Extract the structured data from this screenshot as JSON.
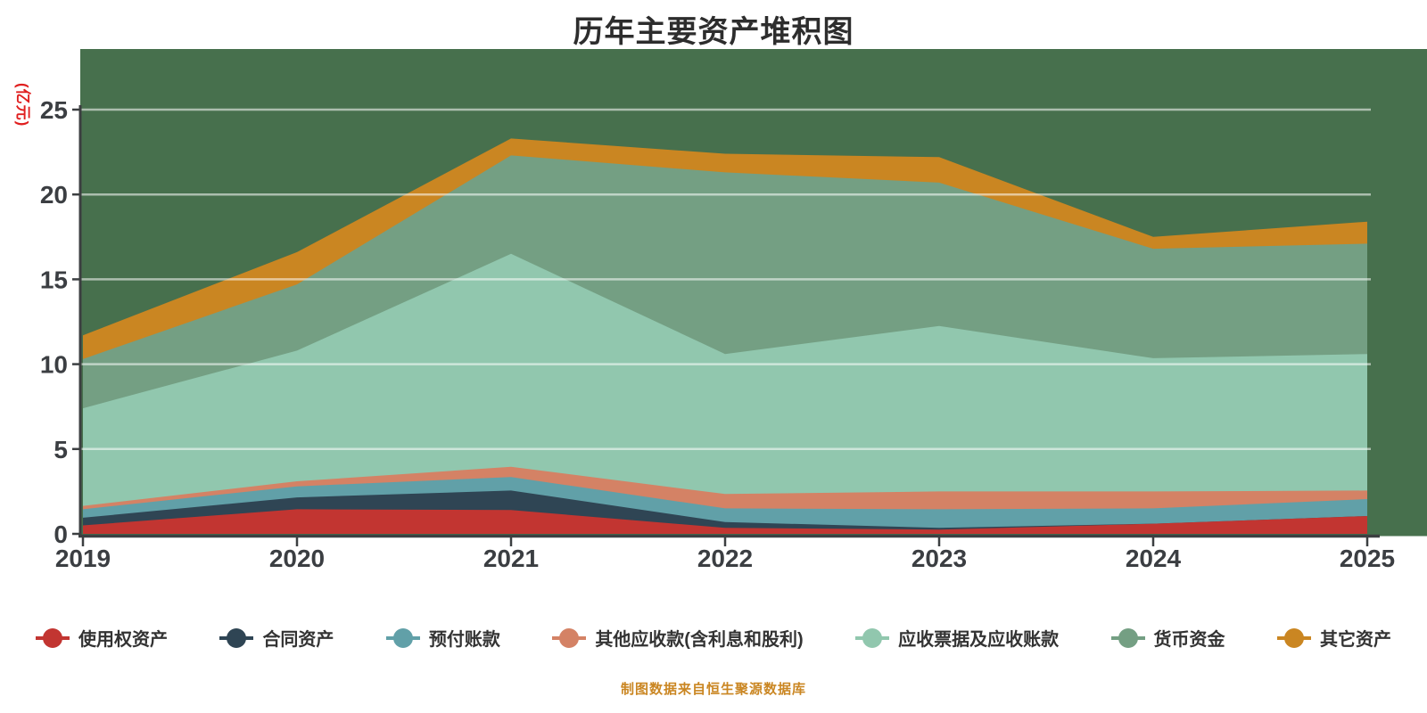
{
  "title": "历年主要资产堆积图",
  "y_axis_name": "(亿元)",
  "footer": "制图数据来自恒生聚源数据库",
  "colors": {
    "page_bg": "#ffffff",
    "plot_bg": "#47704d",
    "axis": "#3c3f41",
    "grid": "rgba(255,255,255,0.55)",
    "tick_label": "#3b3e42",
    "axis_name": "#e01f1f",
    "title": "#2d2d2d",
    "legend_label": "#333333",
    "footer": "#ca8622"
  },
  "chart_data": {
    "type": "area",
    "stacked": true,
    "title": "历年主要资产堆积图",
    "xlabel": "",
    "ylabel": "(亿元)",
    "ylim": [
      0,
      25
    ],
    "y_ticks": [
      0,
      5,
      10,
      15,
      20,
      25
    ],
    "grid": true,
    "legend_position": "bottom",
    "categories": [
      "2019",
      "2020",
      "2021",
      "2022",
      "2023",
      "2024",
      "2025"
    ],
    "series": [
      {
        "name": "使用权资产",
        "color": "#c23531",
        "values": [
          0.5,
          1.45,
          1.4,
          0.35,
          0.25,
          0.6,
          1.05
        ]
      },
      {
        "name": "合同资产",
        "color": "#2f4554",
        "values": [
          0.45,
          0.7,
          1.15,
          0.35,
          0.1,
          0,
          0
        ]
      },
      {
        "name": "预付账款",
        "color": "#61a0a8",
        "values": [
          0.5,
          0.65,
          0.8,
          0.8,
          1.1,
          0.9,
          1.0
        ]
      },
      {
        "name": "其他应收款(含利息和股利)",
        "color": "#d48265",
        "values": [
          0.2,
          0.3,
          0.6,
          0.85,
          1.05,
          1.0,
          0.5
        ]
      },
      {
        "name": "应收票据及应收账款",
        "color": "#91c7ae",
        "values": [
          5.75,
          7.7,
          12.55,
          8.25,
          9.75,
          7.85,
          8.05
        ]
      },
      {
        "name": "货币资金",
        "color": "#749f83",
        "values": [
          2.9,
          3.9,
          5.8,
          10.7,
          8.45,
          6.45,
          6.5
        ]
      },
      {
        "name": "其它资产",
        "color": "#ca8622",
        "values": [
          1.4,
          1.9,
          1.0,
          1.1,
          1.5,
          0.7,
          1.3
        ]
      }
    ],
    "stack_totals": [
      11.7,
      16.6,
      23.3,
      22.4,
      22.2,
      17.5,
      18.4
    ]
  },
  "legend": {
    "items": [
      {
        "label": "使用权资产",
        "color": "#c23531"
      },
      {
        "label": "合同资产",
        "color": "#2f4554"
      },
      {
        "label": "预付账款",
        "color": "#61a0a8"
      },
      {
        "label": "其他应收款(含利息和股利)",
        "color": "#d48265"
      },
      {
        "label": "应收票据及应收账款",
        "color": "#91c7ae"
      },
      {
        "label": "货币资金",
        "color": "#749f83"
      },
      {
        "label": "其它资产",
        "color": "#ca8622"
      }
    ]
  }
}
